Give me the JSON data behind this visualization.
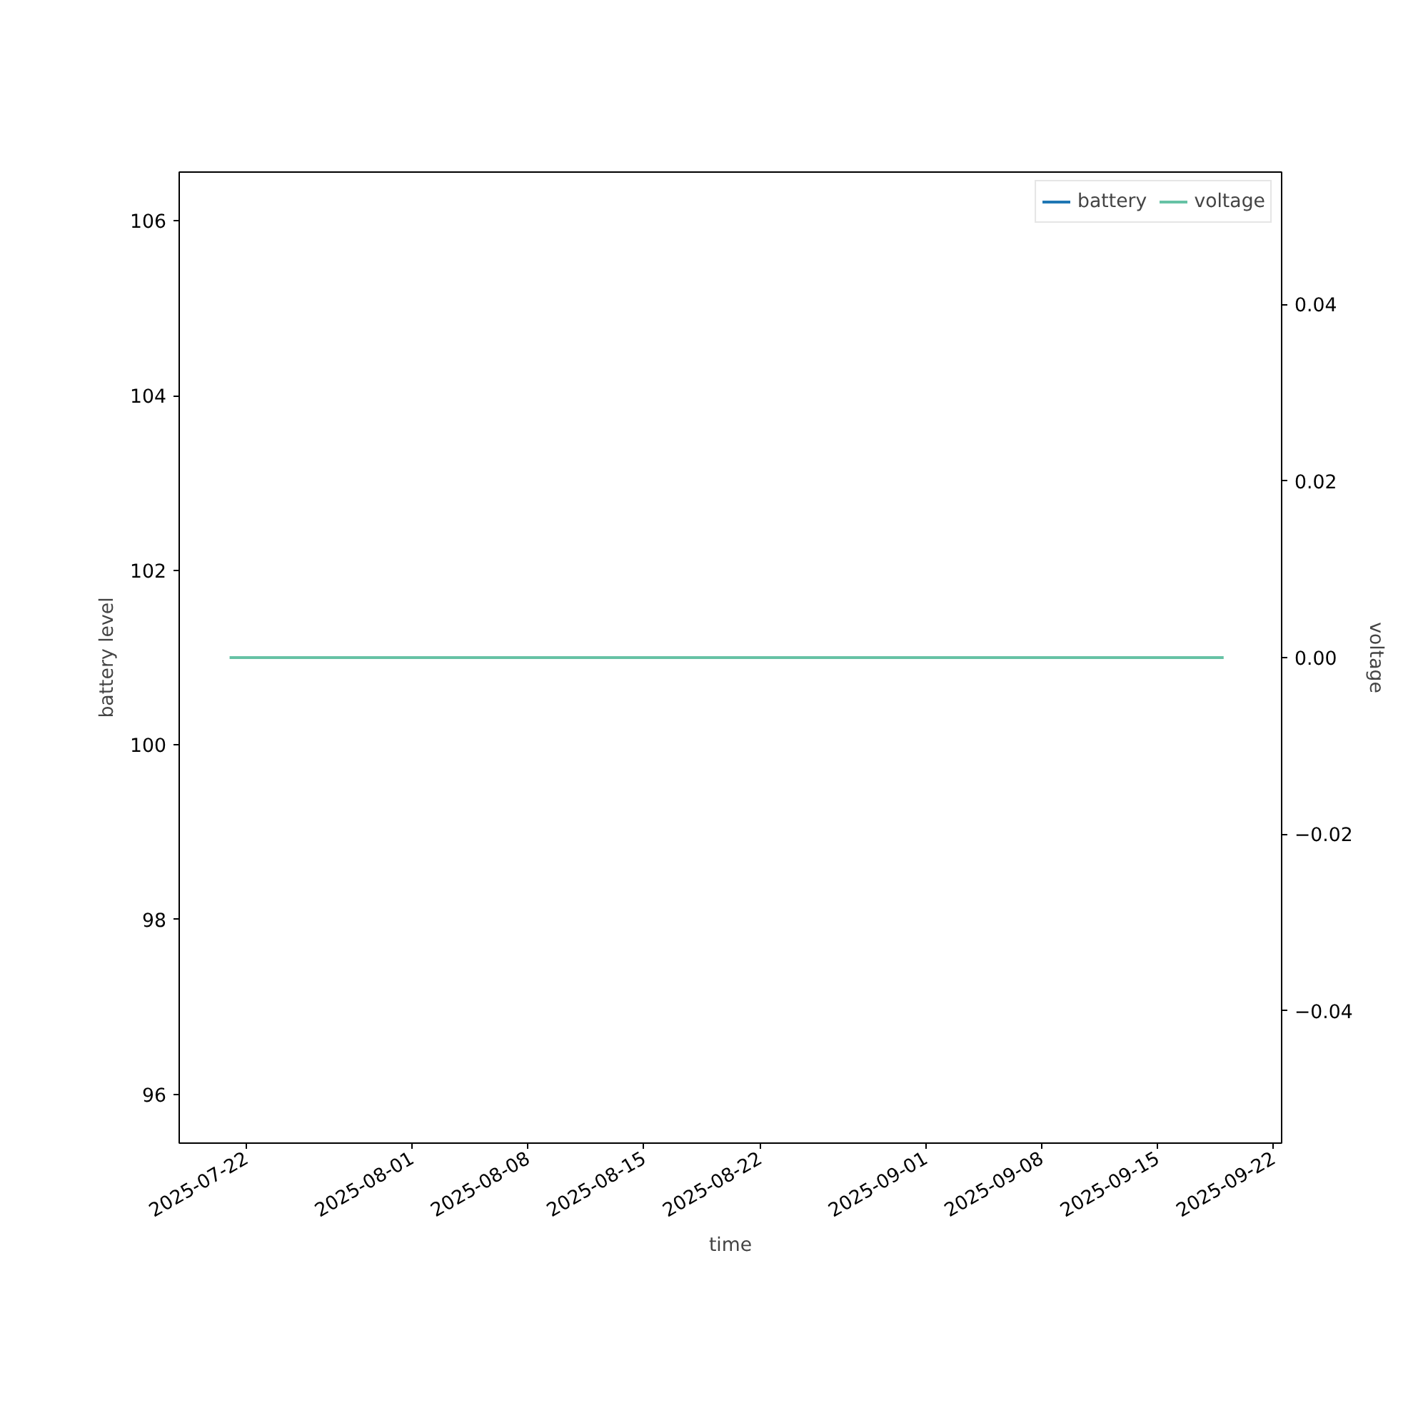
{
  "chart_data": {
    "type": "line",
    "xlabel": "time",
    "ylabel": "battery level",
    "y2label": "voltage",
    "x": [
      "2025-07-21",
      "2025-09-19"
    ],
    "series": [
      {
        "name": "battery",
        "color": "#1f77b4",
        "values": [
          null,
          null
        ]
      },
      {
        "name": "voltage",
        "color": "#66c2a5",
        "values": [
          0,
          0
        ],
        "axis": "y2"
      }
    ],
    "xlim": [
      "2025-07-17T23:00",
      "2025-09-22T12:00"
    ],
    "xticks": [
      "2025-07-22",
      "2025-08-01",
      "2025-08-08",
      "2025-08-15",
      "2025-08-22",
      "2025-09-01",
      "2025-09-08",
      "2025-09-15",
      "2025-09-22"
    ],
    "ylim": [
      95.44,
      106.56
    ],
    "yticks": [
      96,
      98,
      100,
      102,
      104,
      106
    ],
    "y2lim": [
      -0.055,
      0.055
    ],
    "y2ticks": [
      {
        "value": -0.04,
        "label": "−0.04"
      },
      {
        "value": -0.02,
        "label": "−0.02"
      },
      {
        "value": 0,
        "label": "0.00"
      },
      {
        "value": 0.02,
        "label": "0.02"
      },
      {
        "value": 0.04,
        "label": "0.04"
      }
    ],
    "legend": "top right",
    "grid": false,
    "line_style": "solid",
    "marker": "none"
  }
}
